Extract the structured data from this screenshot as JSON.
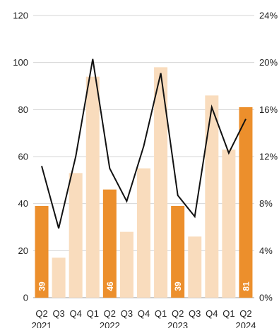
{
  "chart_data": {
    "type": "bar",
    "title": "",
    "xlabel": "",
    "ylabel": "",
    "colors": {
      "highlight": "#ec8f2c",
      "muted": "#f9dcbd",
      "line": "#111111",
      "grid": "#d6d6d6"
    },
    "categories": [
      "Q2",
      "Q3",
      "Q4",
      "Q1",
      "Q2",
      "Q3",
      "Q4",
      "Q1",
      "Q2",
      "Q3",
      "Q4",
      "Q1",
      "Q2"
    ],
    "years": [
      {
        "label": "2021",
        "index": 0
      },
      {
        "label": "2022",
        "index": 4
      },
      {
        "label": "2023",
        "index": 8
      },
      {
        "label": "2024",
        "index": 12
      }
    ],
    "series": [
      {
        "kind": "bar",
        "axis": "left",
        "values": [
          39,
          17,
          53,
          94,
          46,
          28,
          55,
          98,
          39,
          26,
          86,
          63,
          81
        ],
        "highlighted": [
          true,
          false,
          false,
          false,
          true,
          false,
          false,
          false,
          true,
          false,
          false,
          false,
          true
        ],
        "labels": [
          "39",
          "",
          "",
          "",
          "46",
          "",
          "",
          "",
          "39",
          "",
          "",
          "",
          "81"
        ]
      },
      {
        "kind": "line",
        "axis": "right",
        "values": [
          11.2,
          5.9,
          12.0,
          20.3,
          11.0,
          8.2,
          12.9,
          19.1,
          8.7,
          6.9,
          16.2,
          12.3,
          15.2
        ]
      }
    ],
    "ylim_left": [
      0,
      120
    ],
    "ylim_right": [
      0,
      24
    ],
    "yticks_left": [
      "0",
      "20",
      "40",
      "60",
      "80",
      "100",
      "120"
    ],
    "yticks_right": [
      "0%",
      "4%",
      "8%",
      "12%",
      "16%",
      "20%",
      "24%"
    ],
    "grid": true,
    "legend": "none"
  }
}
